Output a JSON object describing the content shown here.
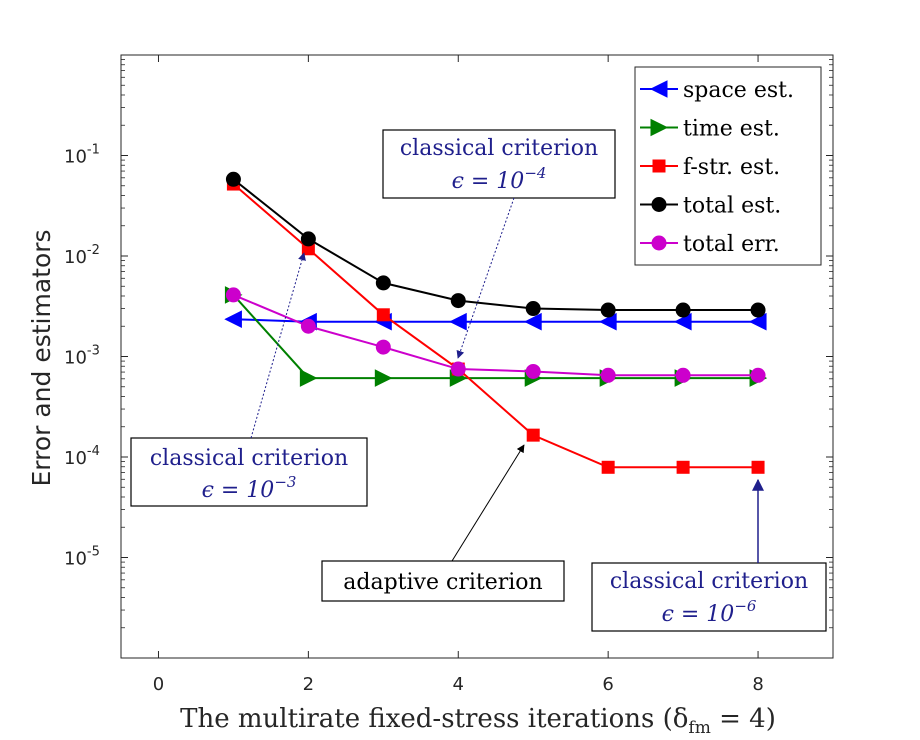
{
  "chart_data": {
    "type": "line",
    "title": "",
    "xlabel": "The multirate fixed-stress iterations (δ",
    "xlabel_sub": "fm",
    "xlabel_tail": " = 4)",
    "ylabel": "Error and estimators",
    "xlim": [
      -0.5,
      9
    ],
    "ylim_log10": [
      -6,
      0
    ],
    "x_ticks": [
      0,
      2,
      4,
      6,
      8
    ],
    "x_tick_labels": [
      "0",
      "2",
      "4",
      "6",
      "8"
    ],
    "y_ticks": [
      {
        "log": -1,
        "base": "10",
        "exp": "-1"
      },
      {
        "log": -2,
        "base": "10",
        "exp": "-2"
      },
      {
        "log": -3,
        "base": "10",
        "exp": "-3"
      },
      {
        "log": -4,
        "base": "10",
        "exp": "-4"
      },
      {
        "log": -5,
        "base": "10",
        "exp": "-5"
      }
    ],
    "x": [
      1,
      2,
      3,
      4,
      5,
      6,
      7,
      8
    ],
    "series": [
      {
        "name": "space est.",
        "color": "#0000ff",
        "marker": "triangle-left",
        "values": [
          0.00235,
          0.00222,
          0.00222,
          0.00222,
          0.00222,
          0.00222,
          0.00222,
          0.00222
        ]
      },
      {
        "name": "time est.",
        "color": "#008000",
        "marker": "triangle-right",
        "values": [
          0.0041,
          0.00061,
          0.00061,
          0.00061,
          0.00061,
          0.00061,
          0.00061,
          0.00061
        ]
      },
      {
        "name": "f-str. est.",
        "color": "#ff0000",
        "marker": "square",
        "values": [
          0.052,
          0.0118,
          0.0026,
          0.00075,
          0.000165,
          7.9e-05,
          7.9e-05,
          7.9e-05
        ]
      },
      {
        "name": "total est.",
        "color": "#000000",
        "marker": "circle",
        "values": [
          0.058,
          0.0148,
          0.0054,
          0.0036,
          0.003,
          0.0029,
          0.0029,
          0.0029
        ]
      },
      {
        "name": "total err.",
        "color": "#cc00cc",
        "marker": "circle",
        "values": [
          0.0041,
          0.002,
          0.00124,
          0.00075,
          0.00071,
          0.00065,
          0.00065,
          0.00065
        ]
      }
    ],
    "annotations": [
      {
        "text": "classical criterion",
        "math_base": "ϵ = 10",
        "math_exp": "−3",
        "color": "#1f1f8c"
      },
      {
        "text": "classical criterion",
        "math_base": "ϵ = 10",
        "math_exp": "−4",
        "color": "#1f1f8c"
      },
      {
        "text": "adaptive criterion",
        "color": "#000000"
      },
      {
        "text": "classical criterion",
        "math_base": "ϵ = 10",
        "math_exp": "−6",
        "color": "#1f1f8c"
      }
    ],
    "legend_position": "top-right"
  }
}
